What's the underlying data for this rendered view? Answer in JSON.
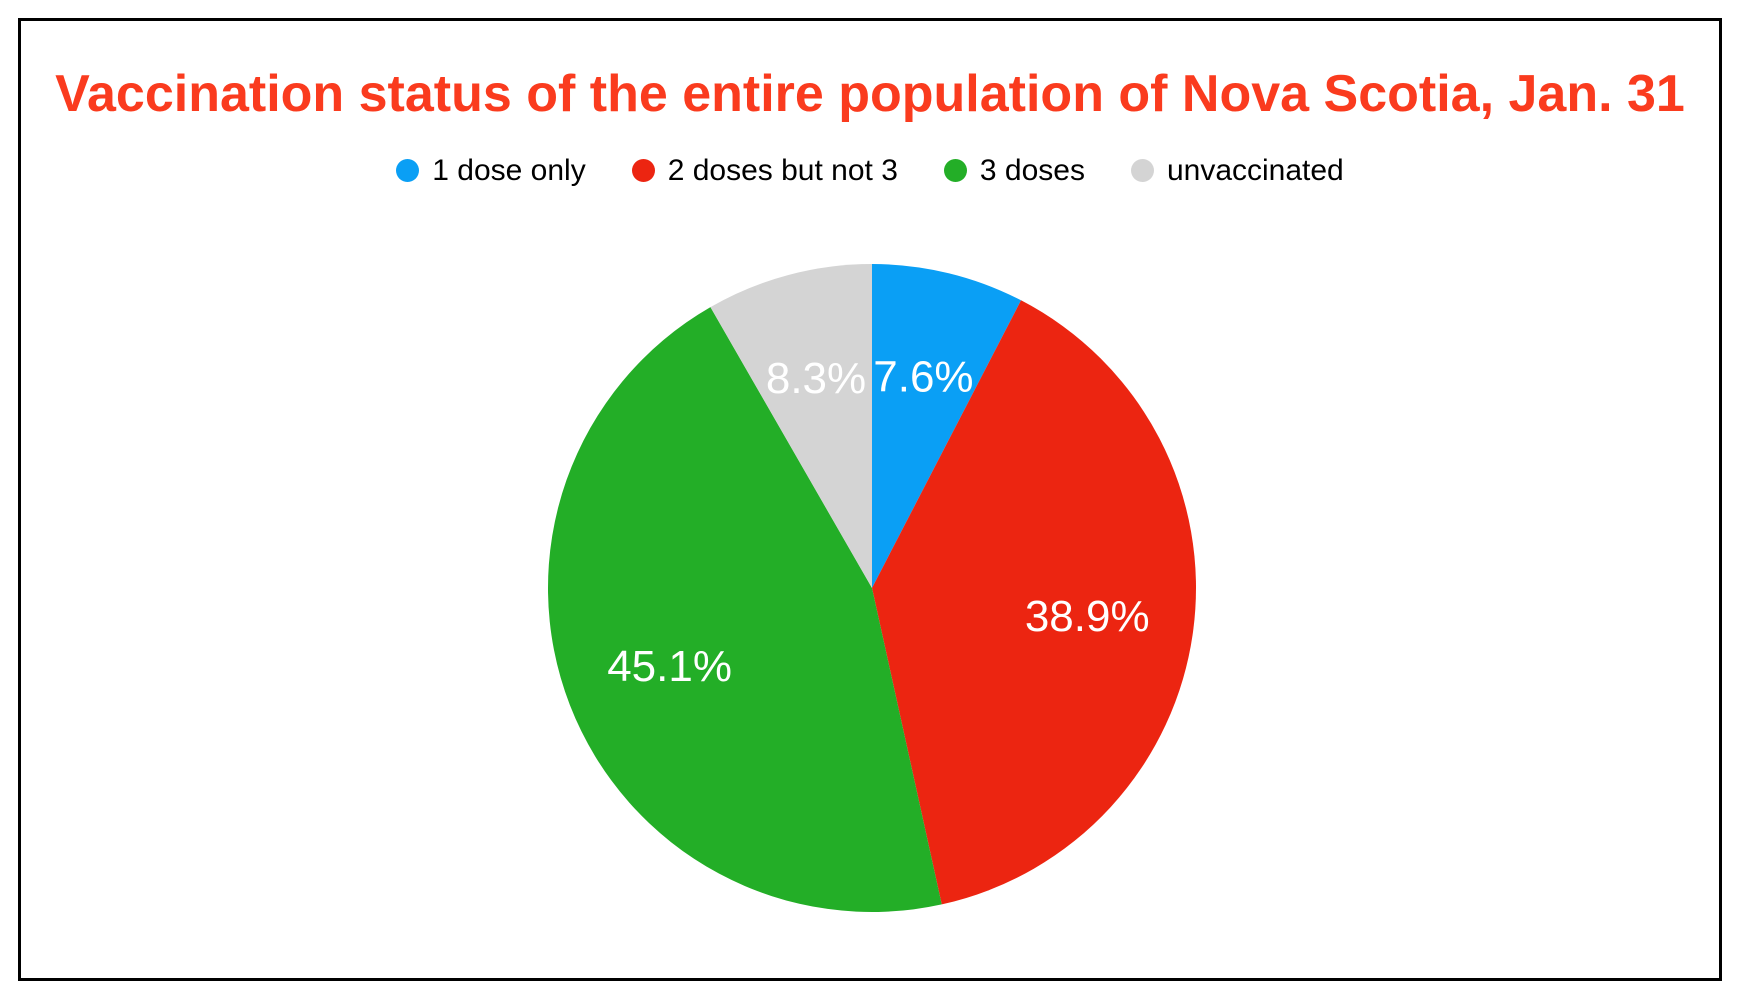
{
  "page": {
    "background": "#ffffff",
    "frame_border_color": "#000000"
  },
  "chart_data": {
    "type": "pie",
    "title": "Vaccination status of the entire population of Nova Scotia, Jan. 31",
    "title_color": "#fa3b1e",
    "legend_position": "top",
    "legend_text_color": "#000000",
    "direction": "clockwise",
    "start_angle": "12 o'clock",
    "value_label_color": "#ffffff",
    "series": [
      {
        "label": "1 dose only",
        "value": 7.6,
        "display": "7.6%",
        "color": "#0a9ff5"
      },
      {
        "label": "2 doses but not 3",
        "value": 38.9,
        "display": "38.9%",
        "color": "#ec2511"
      },
      {
        "label": "3 doses",
        "value": 45.1,
        "display": "45.1%",
        "color": "#23ae27"
      },
      {
        "label": "unvaccinated",
        "value": 8.3,
        "display": "8.3%",
        "color": "#d4d4d4"
      }
    ]
  }
}
